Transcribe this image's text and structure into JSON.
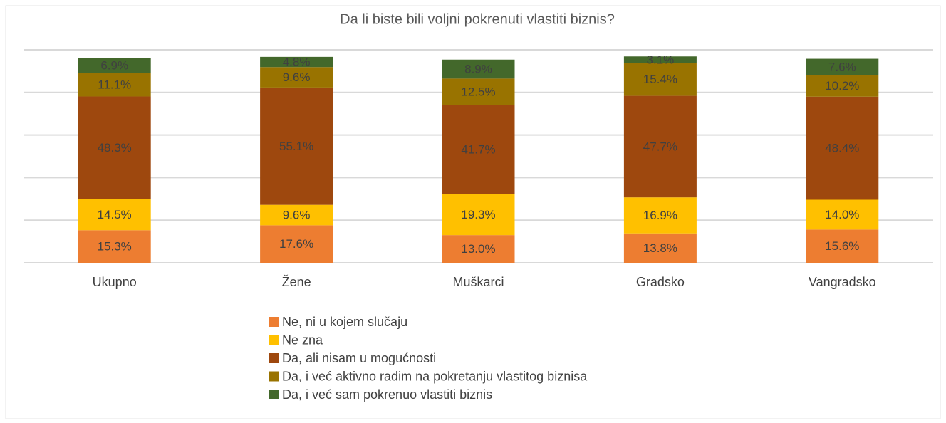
{
  "chart_data": {
    "type": "stacked_bar",
    "title": "Da li biste bili voljni pokrenuti vlastiti biznis?",
    "categories": [
      "Ukupno",
      "Žene",
      "Muškarci",
      "Gradsko",
      "Vangradsko"
    ],
    "series": [
      {
        "name": "Ne, ni u kojem slučaju",
        "color": "#ed7d31",
        "values": [
          15.3,
          17.6,
          13.0,
          13.8,
          15.6
        ],
        "value_labels": [
          "15.3%",
          "17.6%",
          "13.0%",
          "13.8%",
          "15.6%"
        ]
      },
      {
        "name": "Ne zna",
        "color": "#ffc000",
        "values": [
          14.5,
          9.6,
          19.3,
          16.9,
          14.0
        ],
        "value_labels": [
          "14.5%",
          "9.6%",
          "19.3%",
          "16.9%",
          "14.0%"
        ]
      },
      {
        "name": "Da, ali nisam u mogućnosti",
        "color": "#9e480e",
        "values": [
          48.3,
          55.1,
          41.7,
          47.7,
          48.4
        ],
        "value_labels": [
          "48.3%",
          "55.1%",
          "41.7%",
          "47.7%",
          "48.4%"
        ]
      },
      {
        "name": "Da, i već aktivno radim na pokretanju vlastitog biznisa",
        "color": "#997300",
        "values": [
          11.1,
          9.6,
          12.5,
          15.4,
          10.2
        ],
        "value_labels": [
          "11.1%",
          "9.6%",
          "12.5%",
          "15.4%",
          "10.2%"
        ]
      },
      {
        "name": "Da, i već sam pokrenuo vlastiti biznis",
        "color": "#43682b",
        "values": [
          6.9,
          4.8,
          8.9,
          3.1,
          7.6
        ],
        "value_labels": [
          "6.9%",
          "4.8%",
          "8.9%",
          "3.1%",
          "7.6%"
        ]
      }
    ],
    "ylim": [
      0,
      100
    ],
    "yticks": [
      0,
      20,
      40,
      60,
      80,
      100
    ],
    "grid": true
  }
}
